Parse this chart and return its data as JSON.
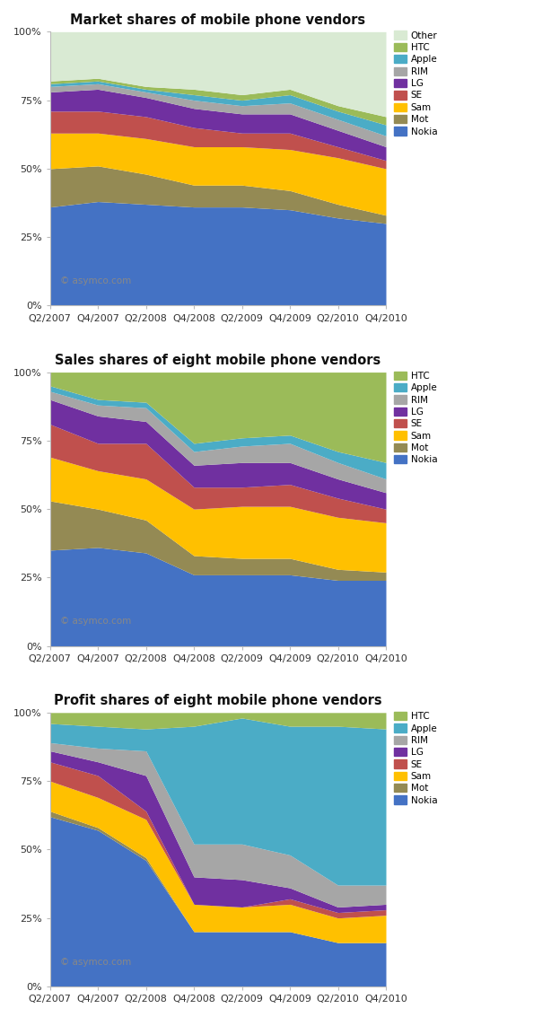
{
  "x_labels": [
    "Q2/2007",
    "Q4/2007",
    "Q2/2008",
    "Q4/2008",
    "Q2/2009",
    "Q4/2009",
    "Q2/2010",
    "Q4/2010"
  ],
  "colors": {
    "Nokia": "#4472C4",
    "Mot": "#948A54",
    "Sam": "#FFC000",
    "SE": "#C0504D",
    "LG": "#7030A0",
    "RIM": "#A6A6A6",
    "Apple": "#4BACC6",
    "HTC": "#9BBB59",
    "Other": "#D9EAD3"
  },
  "chart1_title": "Market shares of mobile phone vendors",
  "chart2_title": "Sales shares of eight mobile phone vendors",
  "chart3_title": "Profit shares of eight mobile phone vendors",
  "chart1": {
    "Nokia": [
      36,
      38,
      37,
      36,
      36,
      35,
      32,
      30
    ],
    "Mot": [
      14,
      13,
      11,
      8,
      8,
      7,
      5,
      3
    ],
    "Sam": [
      13,
      12,
      13,
      14,
      14,
      15,
      17,
      17
    ],
    "SE": [
      8,
      8,
      8,
      7,
      5,
      6,
      4,
      3
    ],
    "LG": [
      7,
      8,
      7,
      7,
      7,
      7,
      6,
      5
    ],
    "RIM": [
      2,
      2,
      2,
      3,
      3,
      4,
      4,
      4
    ],
    "Apple": [
      1,
      1,
      1,
      2,
      2,
      3,
      3,
      4
    ],
    "HTC": [
      1,
      1,
      1,
      2,
      2,
      2,
      2,
      3
    ],
    "Other": [
      18,
      17,
      20,
      21,
      23,
      21,
      27,
      31
    ]
  },
  "chart2": {
    "Nokia": [
      35,
      36,
      34,
      26,
      26,
      26,
      24,
      24
    ],
    "Mot": [
      18,
      14,
      12,
      7,
      6,
      6,
      4,
      3
    ],
    "Sam": [
      16,
      14,
      15,
      17,
      19,
      19,
      19,
      18
    ],
    "SE": [
      12,
      10,
      13,
      8,
      7,
      8,
      7,
      5
    ],
    "LG": [
      9,
      10,
      8,
      8,
      9,
      8,
      7,
      6
    ],
    "RIM": [
      3,
      4,
      5,
      5,
      6,
      7,
      6,
      5
    ],
    "Apple": [
      2,
      2,
      2,
      3,
      3,
      3,
      4,
      6
    ],
    "HTC": [
      5,
      10,
      11,
      26,
      24,
      23,
      29,
      33
    ]
  },
  "chart3": {
    "Nokia": [
      62,
      57,
      46,
      20,
      20,
      20,
      16,
      16
    ],
    "Mot": [
      2,
      1,
      1,
      0,
      0,
      0,
      0,
      0
    ],
    "Sam": [
      11,
      11,
      14,
      10,
      9,
      10,
      9,
      10
    ],
    "SE": [
      7,
      8,
      3,
      0,
      0,
      2,
      2,
      2
    ],
    "LG": [
      4,
      5,
      13,
      10,
      10,
      4,
      2,
      2
    ],
    "RIM": [
      3,
      5,
      9,
      12,
      13,
      12,
      8,
      7
    ],
    "Apple": [
      7,
      8,
      8,
      43,
      46,
      47,
      58,
      57
    ],
    "HTC": [
      4,
      5,
      6,
      5,
      2,
      5,
      5,
      6
    ]
  },
  "watermark": "© asymco.com",
  "legend1_order": [
    "Other",
    "HTC",
    "Apple",
    "RIM",
    "LG",
    "SE",
    "Sam",
    "Mot",
    "Nokia"
  ],
  "legend23_order": [
    "HTC",
    "Apple",
    "RIM",
    "LG",
    "SE",
    "Sam",
    "Mot",
    "Nokia"
  ]
}
